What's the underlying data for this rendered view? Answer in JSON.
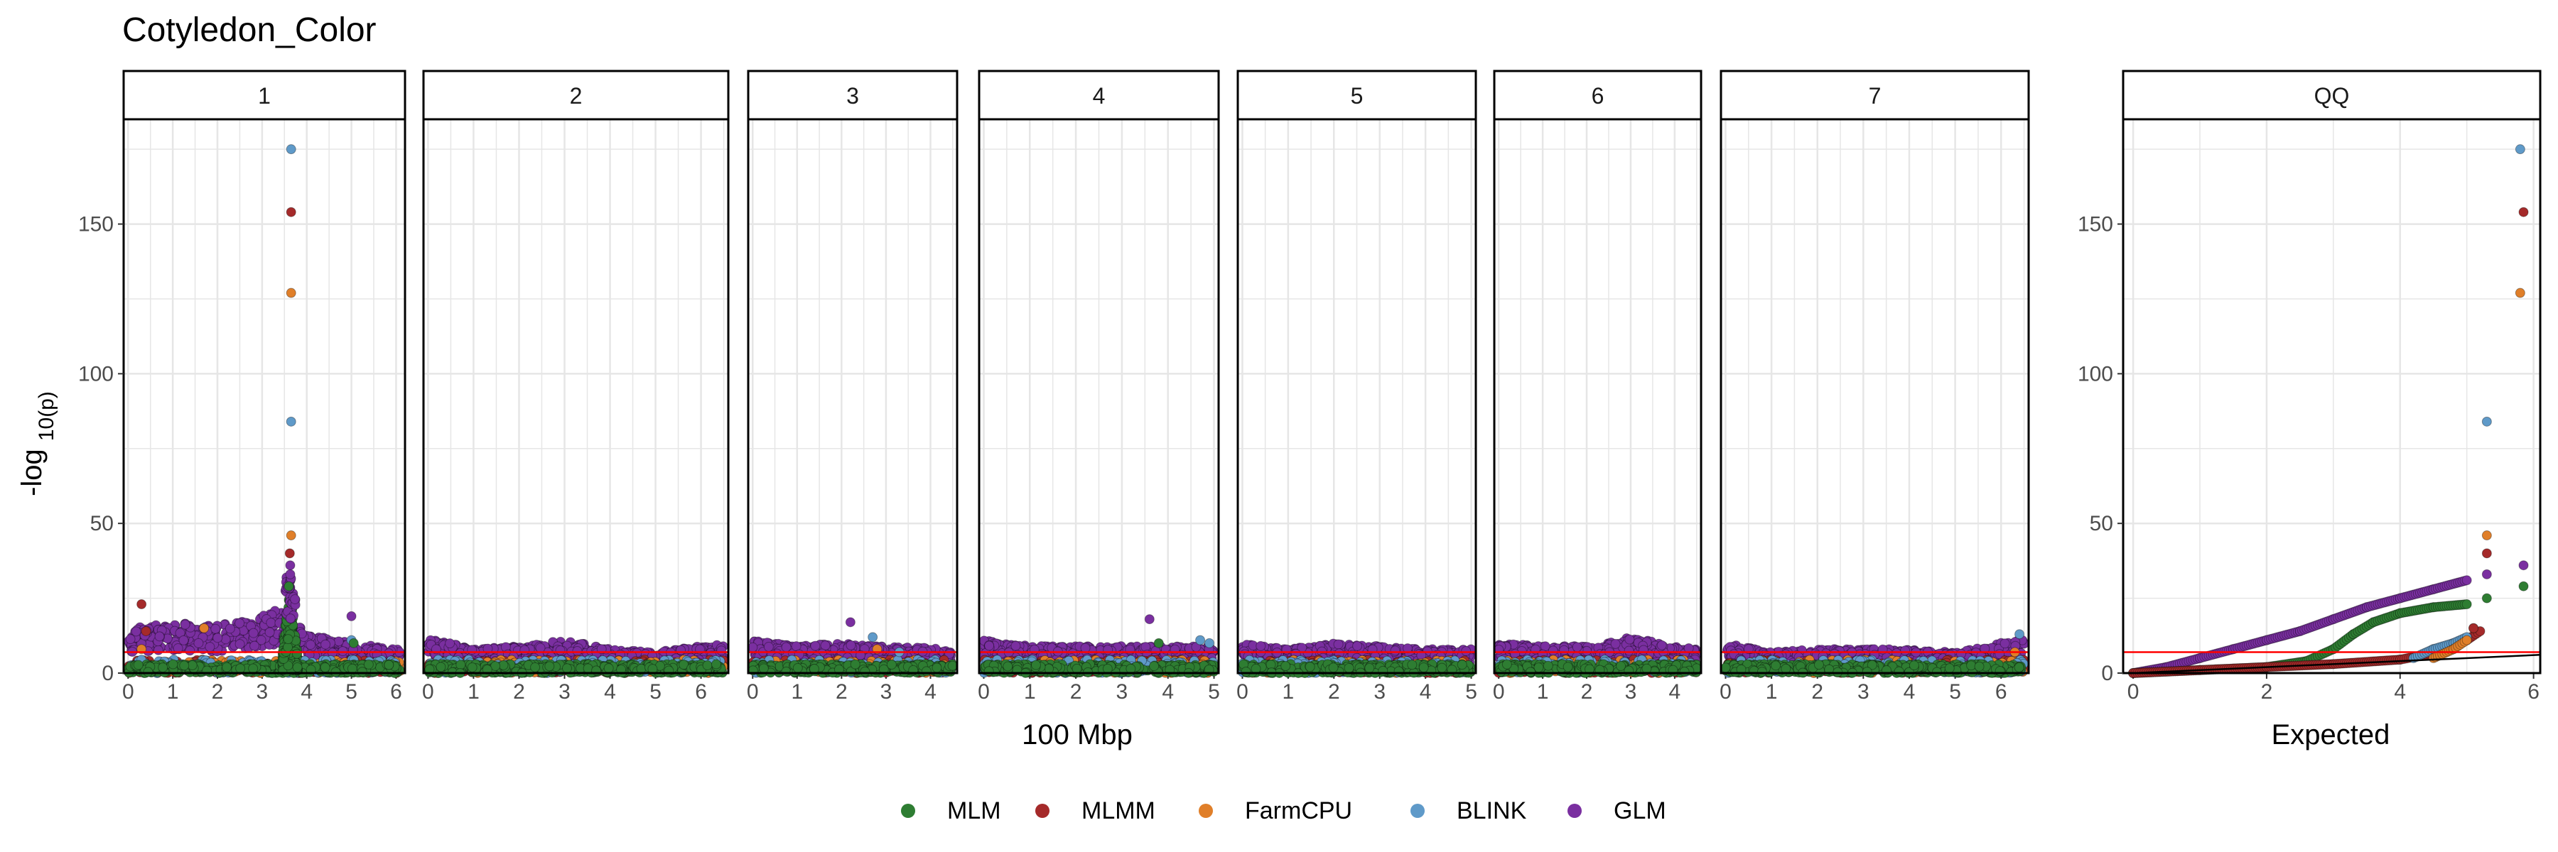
{
  "colors": {
    "MLM": "#2e7d32",
    "MLMM": "#a52a2a",
    "FarmCPU": "#e07f29",
    "BLINK": "#5f9ac9",
    "GLM": "#7a2fa0",
    "threshold": "#ff0000",
    "grid": "#e6e6e6",
    "text": "#4d4d4d"
  },
  "chart_data": {
    "type": "scatter",
    "title": "Cotyledon_Color",
    "ylabel": "-log 10(p)",
    "ylim": [
      0,
      185
    ],
    "yticks": [
      0,
      50,
      100,
      150
    ],
    "threshold": 7,
    "manhattan": {
      "xlabel": "100 Mbp",
      "panels": [
        {
          "label": "1",
          "xlim": [
            -0.1,
            6.2
          ],
          "xticks": [
            0,
            1,
            2,
            3,
            4,
            5,
            6
          ],
          "base_glm": 10,
          "glm_hump": [
            [
              0.1,
              15
            ],
            [
              1,
              17
            ],
            [
              2,
              16
            ],
            [
              3,
              19
            ],
            [
              3.4,
              22
            ],
            [
              4,
              13
            ],
            [
              5,
              10
            ],
            [
              6,
              8
            ]
          ],
          "peaks": [
            {
              "series": "BLINK",
              "x": 3.65,
              "y": 175
            },
            {
              "series": "MLMM",
              "x": 3.65,
              "y": 154
            },
            {
              "series": "FarmCPU",
              "x": 3.65,
              "y": 127
            },
            {
              "series": "BLINK",
              "x": 3.65,
              "y": 84
            },
            {
              "series": "FarmCPU",
              "x": 3.65,
              "y": 46
            },
            {
              "series": "MLMM",
              "x": 3.62,
              "y": 40
            },
            {
              "series": "GLM",
              "x": 3.63,
              "y": 36
            },
            {
              "series": "GLM",
              "x": 3.63,
              "y": 33
            },
            {
              "series": "MLM",
              "x": 3.6,
              "y": 29
            },
            {
              "series": "MLMM",
              "x": 0.3,
              "y": 23
            },
            {
              "series": "GLM",
              "x": 5.0,
              "y": 19
            },
            {
              "series": "FarmCPU",
              "x": 1.7,
              "y": 15
            },
            {
              "series": "MLMM",
              "x": 0.4,
              "y": 14
            },
            {
              "series": "BLINK",
              "x": 5.0,
              "y": 11
            },
            {
              "series": "MLM",
              "x": 5.05,
              "y": 10
            },
            {
              "series": "FarmCPU",
              "x": 0.3,
              "y": 8
            }
          ]
        },
        {
          "label": "2",
          "xlim": [
            -0.1,
            6.6
          ],
          "xticks": [
            0,
            1,
            2,
            3,
            4,
            5,
            6
          ],
          "base_glm": 8,
          "glm_hump": [
            [
              0,
              12
            ],
            [
              1,
              8
            ],
            [
              2,
              9
            ],
            [
              3,
              11
            ],
            [
              4,
              8
            ],
            [
              5,
              7
            ],
            [
              6.5,
              10
            ]
          ],
          "peaks": []
        },
        {
          "label": "3",
          "xlim": [
            -0.1,
            4.6
          ],
          "xticks": [
            0,
            1,
            2,
            3,
            4
          ],
          "base_glm": 8,
          "glm_hump": [
            [
              0,
              11
            ],
            [
              1,
              9
            ],
            [
              2,
              10
            ],
            [
              3,
              9
            ],
            [
              4.5,
              8
            ]
          ],
          "peaks": [
            {
              "series": "GLM",
              "x": 2.2,
              "y": 17
            },
            {
              "series": "BLINK",
              "x": 2.7,
              "y": 12
            },
            {
              "series": "FarmCPU",
              "x": 2.8,
              "y": 8
            },
            {
              "series": "BLINK",
              "x": 3.3,
              "y": 7
            }
          ]
        },
        {
          "label": "4",
          "xlim": [
            -0.1,
            5.1
          ],
          "xticks": [
            0,
            1,
            2,
            3,
            4,
            5
          ],
          "base_glm": 8,
          "glm_hump": [
            [
              0,
              11
            ],
            [
              1,
              9
            ],
            [
              2,
              9
            ],
            [
              3,
              9
            ],
            [
              4,
              9
            ],
            [
              5,
              9
            ]
          ],
          "peaks": [
            {
              "series": "GLM",
              "x": 3.6,
              "y": 18
            },
            {
              "series": "BLINK",
              "x": 4.7,
              "y": 11
            },
            {
              "series": "BLINK",
              "x": 4.9,
              "y": 10
            },
            {
              "series": "MLM",
              "x": 3.8,
              "y": 10
            }
          ]
        },
        {
          "label": "5",
          "xlim": [
            -0.1,
            5.1
          ],
          "xticks": [
            0,
            1,
            2,
            3,
            4,
            5
          ],
          "base_glm": 8,
          "glm_hump": [
            [
              0,
              10
            ],
            [
              1,
              8
            ],
            [
              2,
              10
            ],
            [
              3,
              9
            ],
            [
              4,
              8
            ],
            [
              5,
              8
            ]
          ],
          "peaks": []
        },
        {
          "label": "6",
          "xlim": [
            -0.1,
            4.6
          ],
          "xticks": [
            0,
            1,
            2,
            3,
            4
          ],
          "base_glm": 8,
          "glm_hump": [
            [
              0,
              10
            ],
            [
              1,
              9
            ],
            [
              2,
              9
            ],
            [
              3,
              12
            ],
            [
              4,
              9
            ],
            [
              4.5,
              8
            ]
          ],
          "peaks": []
        },
        {
          "label": "7",
          "xlim": [
            -0.1,
            6.6
          ],
          "xticks": [
            0,
            1,
            2,
            3,
            4,
            5,
            6
          ],
          "base_glm": 8,
          "glm_hump": [
            [
              0,
              10
            ],
            [
              1,
              7
            ],
            [
              2,
              8
            ],
            [
              3,
              8
            ],
            [
              4,
              8
            ],
            [
              5,
              7
            ],
            [
              6.3,
              11
            ]
          ],
          "peaks": [
            {
              "series": "BLINK",
              "x": 6.4,
              "y": 13
            },
            {
              "series": "FarmCPU",
              "x": 6.3,
              "y": 7
            }
          ]
        }
      ]
    },
    "qq": {
      "label": "QQ",
      "xlabel": "Expected",
      "xlim": [
        -0.15,
        6.1
      ],
      "xticks": [
        0,
        2,
        4,
        6
      ],
      "tail_points": [
        {
          "series": "BLINK",
          "x": 5.8,
          "y": 175
        },
        {
          "series": "MLMM",
          "x": 5.85,
          "y": 154
        },
        {
          "series": "FarmCPU",
          "x": 5.8,
          "y": 127
        },
        {
          "series": "BLINK",
          "x": 5.3,
          "y": 84
        },
        {
          "series": "FarmCPU",
          "x": 5.3,
          "y": 46
        },
        {
          "series": "MLMM",
          "x": 5.3,
          "y": 40
        },
        {
          "series": "GLM",
          "x": 5.85,
          "y": 36
        },
        {
          "series": "GLM",
          "x": 5.3,
          "y": 33
        },
        {
          "series": "MLM",
          "x": 5.85,
          "y": 29
        },
        {
          "series": "MLM",
          "x": 5.3,
          "y": 25
        },
        {
          "series": "FarmCPU",
          "x": 5.1,
          "y": 15
        },
        {
          "series": "MLMM",
          "x": 5.1,
          "y": 15
        }
      ],
      "curves": [
        {
          "series": "GLM",
          "points": [
            [
              0,
              0
            ],
            [
              0.5,
              2
            ],
            [
              1,
              5
            ],
            [
              1.5,
              8
            ],
            [
              2,
              11
            ],
            [
              2.5,
              14
            ],
            [
              3,
              18
            ],
            [
              3.5,
              22
            ],
            [
              4,
              25
            ],
            [
              4.5,
              28
            ],
            [
              5,
              31
            ]
          ]
        },
        {
          "series": "MLM",
          "points": [
            [
              0,
              0
            ],
            [
              1,
              1
            ],
            [
              2,
              2
            ],
            [
              2.6,
              4
            ],
            [
              3,
              8
            ],
            [
              3.3,
              13
            ],
            [
              3.6,
              17
            ],
            [
              4,
              20
            ],
            [
              4.5,
              22
            ],
            [
              5,
              23
            ]
          ]
        },
        {
          "series": "MLMM",
          "points": [
            [
              0,
              0
            ],
            [
              2,
              2
            ],
            [
              3,
              3
            ],
            [
              4,
              4.5
            ],
            [
              4.6,
              7
            ],
            [
              5,
              11
            ],
            [
              5.2,
              14
            ]
          ]
        },
        {
          "series": "BLINK",
          "points": [
            [
              4.2,
              5
            ],
            [
              4.5,
              8
            ],
            [
              4.8,
              10
            ],
            [
              5.0,
              12
            ]
          ]
        },
        {
          "series": "FarmCPU",
          "points": [
            [
              4.5,
              5
            ],
            [
              4.8,
              8
            ],
            [
              5.0,
              11
            ]
          ]
        }
      ]
    },
    "legend": {
      "position": "bottom",
      "entries": [
        "MLM",
        "MLMM",
        "FarmCPU",
        "BLINK",
        "GLM"
      ]
    }
  }
}
